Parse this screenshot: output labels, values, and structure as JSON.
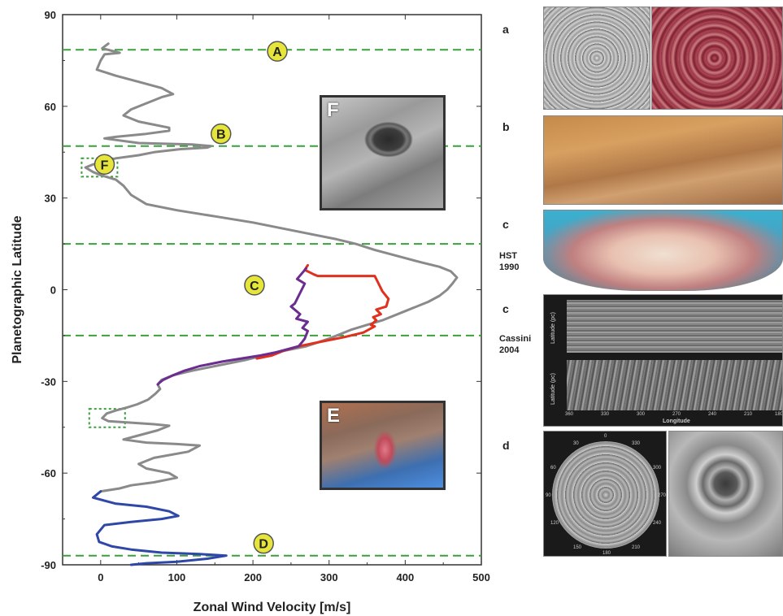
{
  "chart_data": {
    "type": "line",
    "title": "",
    "xlabel": "Zonal Wind Velocity [m/s]",
    "ylabel": "Planetographic Latitude",
    "xlim": [
      -50,
      500
    ],
    "ylim": [
      -90,
      90
    ],
    "xticks": [
      "0",
      "100",
      "200",
      "300",
      "400",
      "500"
    ],
    "yticks": [
      "90",
      "60",
      "30",
      "0",
      "-30",
      "-60",
      "-90"
    ],
    "xtick_values": [
      0,
      100,
      200,
      300,
      400,
      500
    ],
    "ytick_values": [
      90,
      60,
      30,
      0,
      -30,
      -60,
      -90
    ],
    "reference_lines": [
      78.5,
      47,
      15,
      -15,
      -87
    ],
    "colors": {
      "gray": "#8a8a8a",
      "blue": "#2f47a6",
      "red": "#e0301e",
      "purple": "#6b2d8f",
      "reference": "#3aa13a",
      "marker_fill": "#e6e63a"
    },
    "series": [
      {
        "color": "#8a8a8a",
        "x": [
          10,
          2,
          25,
          5,
          0,
          -5,
          20,
          50,
          80,
          95,
          80,
          60,
          40,
          30,
          50,
          90,
          90,
          60,
          20,
          5,
          50,
          120,
          145,
          140,
          105,
          70,
          50,
          20,
          -10,
          -20,
          -10,
          0,
          20,
          30,
          40,
          60,
          100,
          150,
          200,
          240,
          280,
          310,
          335,
          360,
          390,
          420,
          445,
          460,
          468,
          462,
          455,
          445,
          430,
          400,
          370,
          330,
          300,
          270,
          230,
          190,
          150,
          120,
          95,
          80,
          75,
          78,
          72,
          62,
          48,
          35,
          20,
          8,
          2,
          10,
          40,
          70,
          90,
          75,
          45,
          30,
          60,
          100,
          130,
          115,
          70,
          50,
          60,
          90,
          100,
          70,
          40,
          25,
          0
        ],
        "y": [
          80.5,
          79,
          77.5,
          77,
          75,
          72,
          70,
          68,
          66,
          64,
          63,
          61,
          59,
          57,
          55,
          53,
          52,
          51,
          50,
          49.5,
          48,
          47.5,
          47,
          46.5,
          46,
          45,
          44,
          43,
          41,
          40,
          38.5,
          37.5,
          36,
          34,
          31,
          28,
          26,
          24,
          22,
          20,
          18,
          16.5,
          15,
          13,
          11,
          9,
          7.5,
          6,
          4,
          2,
          0,
          -2,
          -4,
          -7,
          -10,
          -13,
          -16,
          -18.5,
          -20.5,
          -23,
          -25,
          -26.5,
          -28,
          -29.5,
          -31,
          -32.5,
          -34,
          -36,
          -37.5,
          -38.5,
          -39.5,
          -40.5,
          -42,
          -43,
          -43.5,
          -44,
          -44.5,
          -46,
          -48,
          -49,
          -50,
          -50.5,
          -51,
          -53,
          -55,
          -57,
          -58.5,
          -60,
          -61.5,
          -63,
          -64,
          -65,
          -66
        ]
      },
      {
        "color": "#2f47a6",
        "x": [
          0,
          -10,
          20,
          60,
          90,
          102,
          80,
          40,
          5,
          -5,
          -2,
          15,
          40,
          80,
          130,
          165,
          140,
          100,
          60,
          40
        ],
        "y": [
          -66,
          -68,
          -70,
          -71,
          -72.5,
          -74,
          -75,
          -76,
          -77,
          -80,
          -82.5,
          -84,
          -85,
          -86,
          -86.5,
          -87,
          -88,
          -89,
          -89.5,
          -90
        ]
      },
      {
        "color": "#e0301e",
        "x": [
          272,
          268,
          276,
          280,
          285,
          300,
          320,
          340,
          360,
          365,
          370,
          378,
          375,
          362,
          368,
          358,
          362,
          355,
          360,
          345,
          320,
          290,
          260,
          240,
          225,
          205
        ],
        "y": [
          8,
          6.5,
          5.5,
          5,
          4.5,
          4.5,
          4.5,
          4.5,
          4.5,
          2,
          -0.5,
          -3,
          -5.5,
          -6.5,
          -8,
          -9,
          -10,
          -11.5,
          -12,
          -14,
          -15.5,
          -17,
          -18.5,
          -20,
          -21.5,
          -22.5
        ]
      },
      {
        "color": "#6b2d8f",
        "x": [
          270,
          258,
          268,
          255,
          250,
          262,
          257,
          272,
          265,
          272,
          268,
          265,
          260,
          245,
          230,
          210,
          185,
          160,
          130,
          110,
          95,
          82,
          77,
          75
        ],
        "y": [
          7,
          3.5,
          2,
          -4.5,
          -5.5,
          -8,
          -9.5,
          -10.5,
          -12.5,
          -13.5,
          -16,
          -17,
          -18.5,
          -19.5,
          -20.5,
          -21.5,
          -22.5,
          -23.5,
          -25,
          -26.5,
          -28,
          -29.5,
          -30.5,
          -31
        ]
      }
    ],
    "markers": [
      {
        "label": "A",
        "x": 232,
        "y": 78
      },
      {
        "label": "B",
        "x": 158,
        "y": 51
      },
      {
        "label": "F",
        "x": 5,
        "y": 41
      },
      {
        "label": "C",
        "x": 202,
        "y": 1.5
      },
      {
        "label": "D",
        "x": 214,
        "y": -83
      }
    ],
    "dotted_boxes": [
      {
        "x0": -25,
        "x1": 22,
        "y0": 37,
        "y1": 43
      },
      {
        "x0": -15,
        "x1": 32,
        "y0": -39,
        "y1": -45
      }
    ]
  },
  "insets": {
    "f_letter": "F",
    "e_letter": "E"
  },
  "panels": {
    "label_a": "a",
    "label_b": "b",
    "label_c1": "c",
    "label_c2": "c",
    "label_d": "d",
    "note_hst": "HST",
    "note_hst_year": "1990",
    "note_cassini": "Cassini",
    "note_cassini_year": "2004",
    "strip_ylabel": "Latitude (pc)",
    "strip_xlabel": "Longitude",
    "strip_ticks": [
      "360",
      "330",
      "300",
      "270",
      "240",
      "210",
      "180"
    ]
  },
  "polar_ticks": [
    "0",
    "330",
    "300",
    "270",
    "240",
    "210",
    "180",
    "150",
    "120",
    "90",
    "60",
    "30"
  ]
}
